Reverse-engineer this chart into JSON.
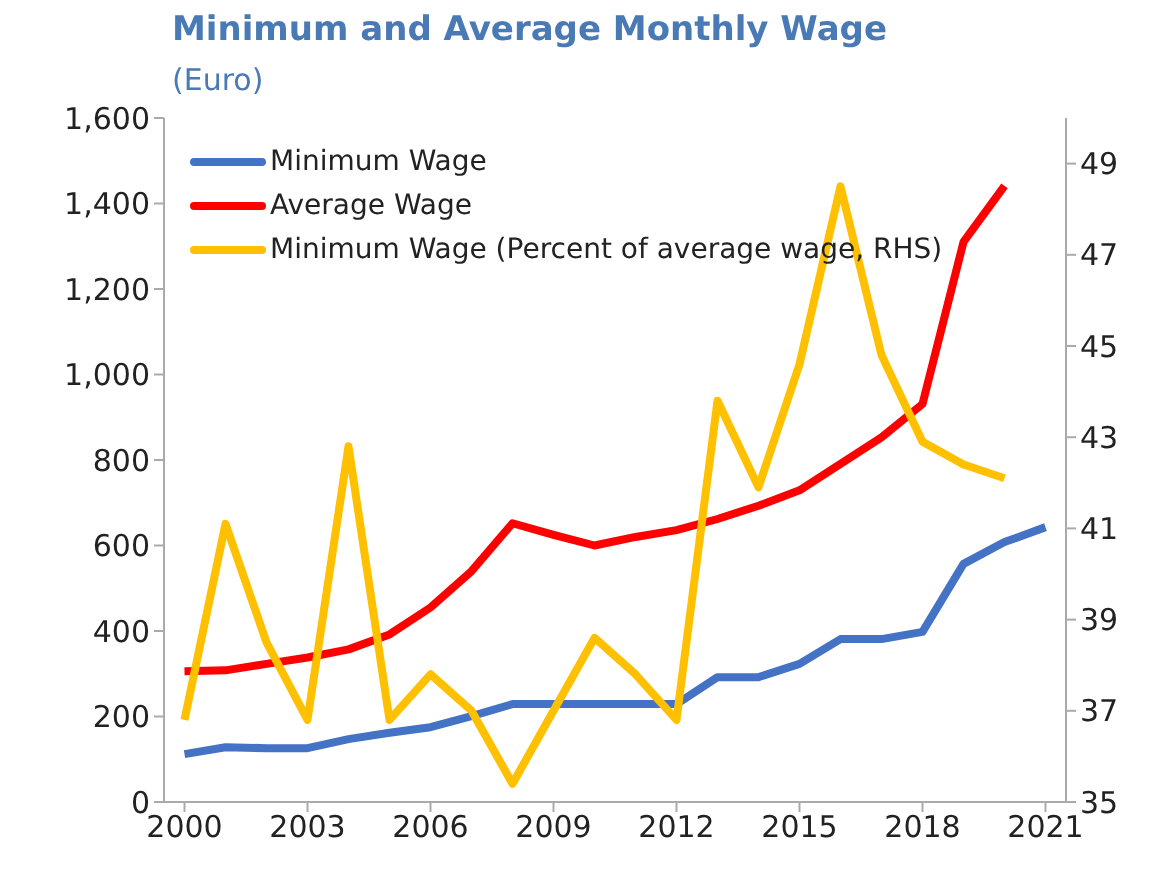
{
  "chart_data": {
    "type": "line",
    "title": "Minimum and Average Monthly Wage",
    "subtitle": "(Euro)",
    "x": [
      2000,
      2001,
      2002,
      2003,
      2004,
      2005,
      2006,
      2007,
      2008,
      2009,
      2010,
      2011,
      2012,
      2013,
      2014,
      2015,
      2016,
      2017,
      2018,
      2019,
      2020,
      2021
    ],
    "xlim": [
      1999.5,
      2021.5
    ],
    "xticks": [
      2000,
      2003,
      2006,
      2009,
      2012,
      2015,
      2018,
      2021
    ],
    "ylim": [
      0,
      1600
    ],
    "yticks": [
      0,
      200,
      400,
      600,
      800,
      {
        "value": 1000,
        "label": "1,000"
      },
      {
        "value": 1200,
        "label": "1,200"
      },
      {
        "value": 1400,
        "label": "1,400"
      },
      {
        "value": 1600,
        "label": "1,600"
      }
    ],
    "y2lim": [
      35,
      50
    ],
    "y2ticks": [
      35,
      37,
      39,
      41,
      43,
      45,
      47,
      49
    ],
    "legend": "top left",
    "marker": "none",
    "line_style": "solid",
    "grid": false,
    "series": [
      {
        "name": "Minimum Wage",
        "color": "#4472c4",
        "values": [
          112,
          128,
          126,
          126,
          147,
          162,
          175,
          201,
          229,
          229,
          229,
          229,
          229,
          292,
          292,
          323,
          381,
          381,
          398,
          557,
          608,
          643
        ]
      },
      {
        "name": "Average Wage",
        "color": "#ff0000",
        "values": [
          306,
          308,
          323,
          338,
          357,
          392,
          455,
          540,
          652,
          625,
          600,
          620,
          636,
          662,
          693,
          729,
          791,
          853,
          931,
          1310,
          1441,
          null
        ]
      },
      {
        "name": "Minimum Wage (Percent of average wage, RHS)",
        "color": "#ffc000",
        "axis": "y2",
        "values": [
          36.8,
          41.1,
          38.5,
          36.8,
          42.8,
          36.8,
          37.8,
          37.0,
          35.4,
          37.0,
          38.6,
          37.8,
          36.8,
          43.8,
          41.9,
          44.6,
          48.5,
          44.8,
          42.9,
          42.4,
          42.1,
          null
        ]
      }
    ]
  }
}
